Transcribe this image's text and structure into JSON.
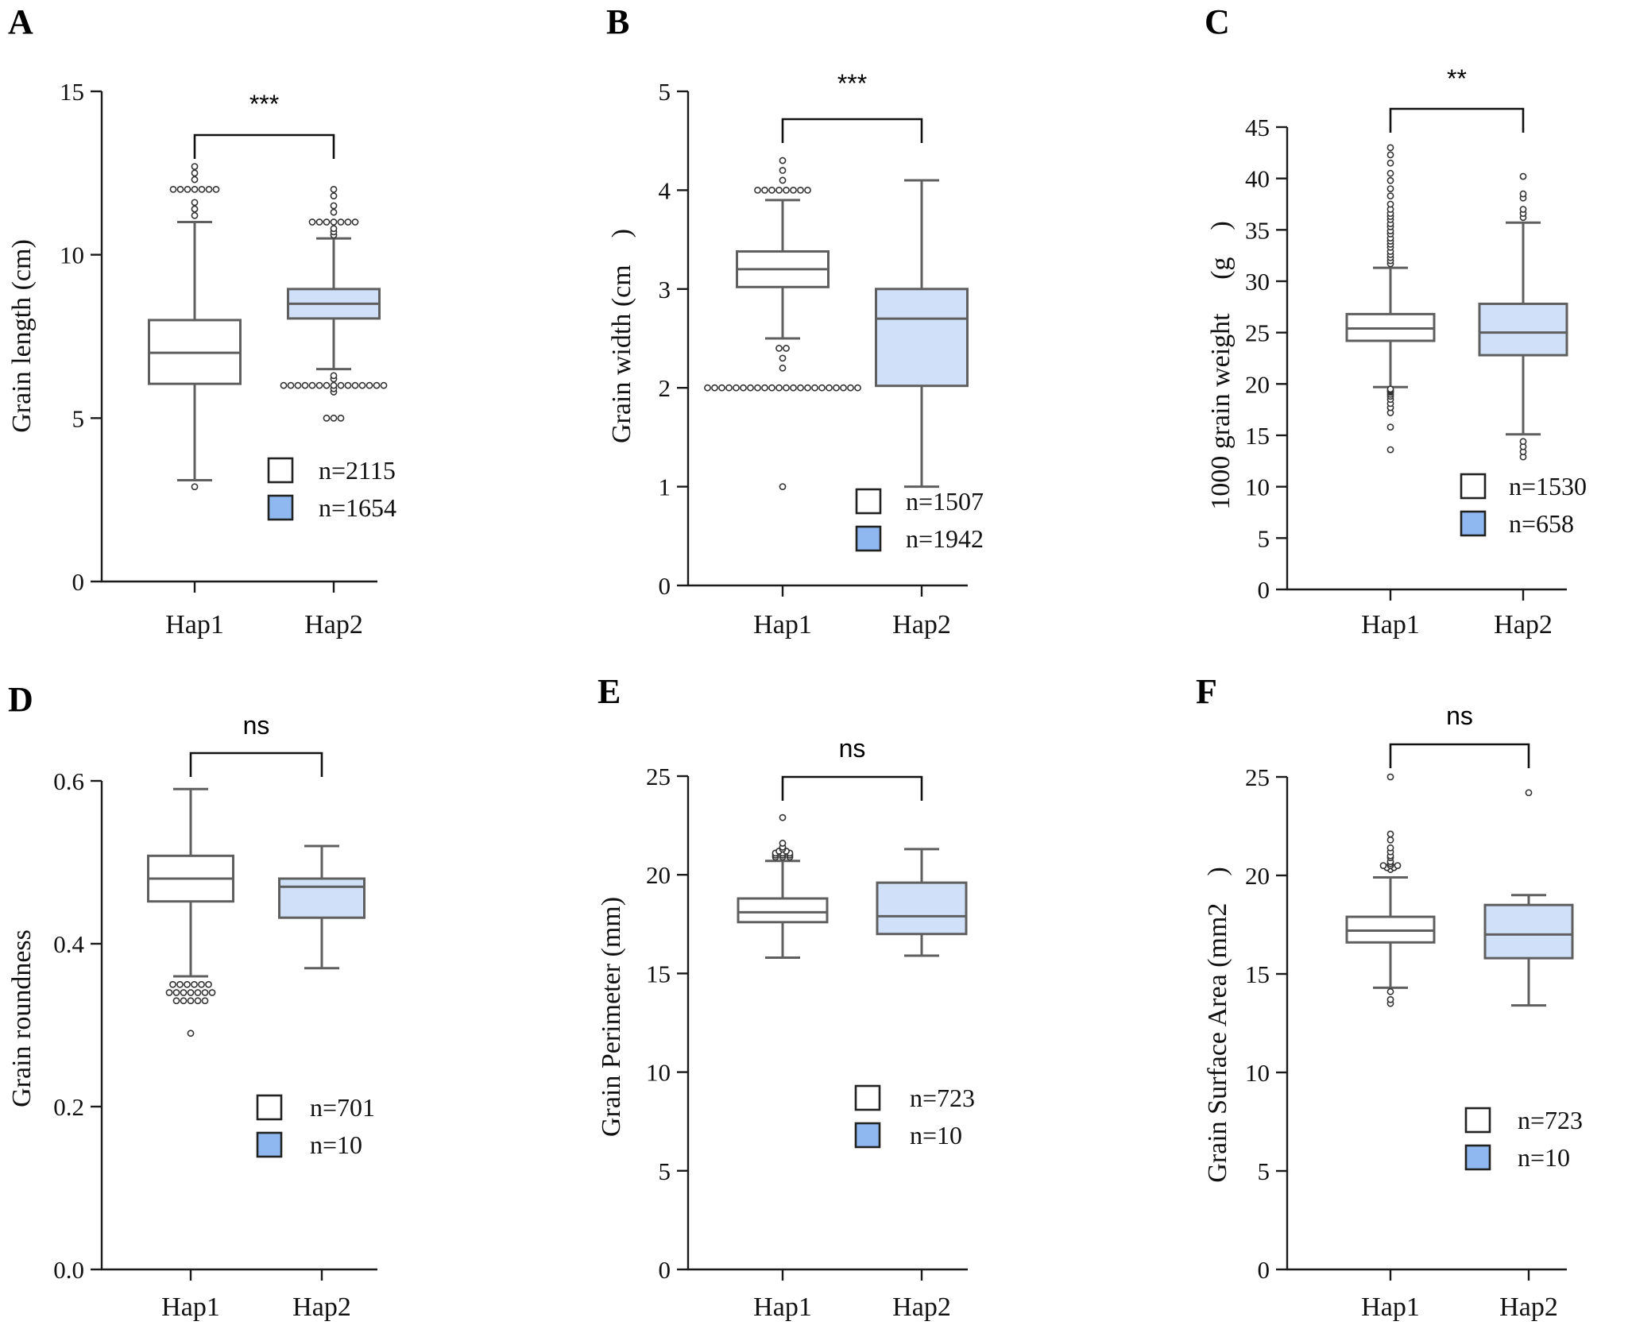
{
  "colors": {
    "hap1_fill": "#ffffff",
    "hap2_fill": "#cfe0f8",
    "legend_hap2_fill": "#8fb8f0"
  },
  "chart_data": [
    {
      "panel": "A",
      "type": "box",
      "ylabel": "Grain length (cm)",
      "ylim": [
        0,
        15
      ],
      "yticks": [
        "0",
        "5",
        "10",
        "15"
      ],
      "ytick_values": [
        0,
        5,
        10,
        15
      ],
      "categories": [
        "Hap1",
        "Hap2"
      ],
      "significance": "***",
      "legend": [
        "n=2115",
        "n=1654"
      ],
      "boxes": [
        {
          "q1": 6.05,
          "median": 7.0,
          "q3": 8.0,
          "whisker_low": 3.1,
          "whisker_high": 11.0,
          "outliers": [
            2.9,
            11.2,
            11.4,
            11.6,
            12.0,
            12.0,
            12.0,
            12.0,
            12.0,
            12.0,
            12.0,
            12.3,
            12.5,
            12.7
          ]
        },
        {
          "q1": 8.05,
          "median": 8.5,
          "q3": 8.95,
          "whisker_low": 6.5,
          "whisker_high": 10.5,
          "outliers": [
            5.0,
            5.0,
            5.0,
            5.8,
            5.9,
            6.0,
            6.0,
            6.0,
            6.0,
            6.0,
            6.0,
            6.0,
            6.0,
            6.0,
            6.0,
            6.0,
            6.0,
            6.0,
            6.0,
            6.0,
            6.2,
            6.3,
            10.6,
            10.7,
            10.8,
            11.0,
            11.0,
            11.0,
            11.0,
            11.0,
            11.0,
            11.0,
            11.3,
            11.5,
            11.8,
            12.0
          ]
        }
      ]
    },
    {
      "panel": "B",
      "type": "box",
      "ylabel": "Grain width (cm　)",
      "ylim": [
        0,
        5
      ],
      "yticks": [
        "0",
        "1",
        "2",
        "3",
        "4",
        "5"
      ],
      "ytick_values": [
        0,
        1,
        2,
        3,
        4,
        5
      ],
      "categories": [
        "Hap1",
        "Hap2"
      ],
      "significance": "***",
      "legend": [
        "n=1507",
        "n=1942"
      ],
      "boxes": [
        {
          "q1": 3.02,
          "median": 3.2,
          "q3": 3.38,
          "whisker_low": 2.5,
          "whisker_high": 3.9,
          "outliers": [
            1.0,
            2.0,
            2.0,
            2.0,
            2.0,
            2.0,
            2.0,
            2.0,
            2.0,
            2.0,
            2.0,
            2.0,
            2.0,
            2.0,
            2.0,
            2.0,
            2.0,
            2.0,
            2.0,
            2.0,
            2.0,
            2.0,
            2.0,
            2.2,
            2.3,
            2.4,
            2.4,
            4.0,
            4.0,
            4.0,
            4.0,
            4.0,
            4.0,
            4.0,
            4.0,
            4.1,
            4.2,
            4.3
          ]
        },
        {
          "q1": 2.02,
          "median": 2.7,
          "q3": 3.0,
          "whisker_low": 1.0,
          "whisker_high": 4.1,
          "outliers": []
        }
      ]
    },
    {
      "panel": "C",
      "type": "box",
      "ylabel": "1000 grain weight 　(g　)",
      "ylim": [
        0,
        45
      ],
      "yticks": [
        "0",
        "5",
        "10",
        "15",
        "20",
        "25",
        "30",
        "35",
        "40",
        "45"
      ],
      "ytick_values": [
        0,
        5,
        10,
        15,
        20,
        25,
        30,
        35,
        40,
        45
      ],
      "categories": [
        "Hap1",
        "Hap2"
      ],
      "significance": "**",
      "legend": [
        "n=1530",
        "n=658"
      ],
      "boxes": [
        {
          "q1": 24.2,
          "median": 25.4,
          "q3": 26.8,
          "whisker_low": 19.7,
          "whisker_high": 31.3,
          "outliers": [
            13.6,
            15.8,
            17.2,
            17.7,
            18.1,
            18.5,
            18.8,
            19.0,
            19.2,
            19.3,
            19.4,
            19.5,
            31.7,
            32.0,
            32.3,
            32.6,
            32.9,
            33.3,
            33.6,
            33.9,
            34.2,
            34.6,
            34.9,
            35.3,
            35.6,
            36.0,
            36.3,
            36.6,
            37.0,
            37.5,
            38.3,
            39.0,
            39.8,
            40.5,
            41.5,
            42.3,
            43.0
          ]
        },
        {
          "q1": 22.8,
          "median": 25.0,
          "q3": 27.8,
          "whisker_low": 15.1,
          "whisker_high": 35.7,
          "outliers": [
            12.9,
            13.4,
            13.9,
            14.4,
            36.2,
            36.6,
            37.0,
            38.1,
            38.5,
            40.2
          ]
        }
      ]
    },
    {
      "panel": "D",
      "type": "box",
      "ylabel": "Grain roundness",
      "ylim": [
        0,
        0.6
      ],
      "yticks": [
        "0.0",
        "0.2",
        "0.4",
        "0.6"
      ],
      "ytick_values": [
        0,
        0.2,
        0.4,
        0.6
      ],
      "categories": [
        "Hap1",
        "Hap2"
      ],
      "significance": "ns",
      "legend": [
        "n=701",
        "n=10"
      ],
      "boxes": [
        {
          "q1": 0.452,
          "median": 0.48,
          "q3": 0.508,
          "whisker_low": 0.36,
          "whisker_high": 0.59,
          "outliers": [
            0.29,
            0.33,
            0.33,
            0.33,
            0.33,
            0.33,
            0.34,
            0.34,
            0.34,
            0.34,
            0.34,
            0.34,
            0.34,
            0.35,
            0.35,
            0.35,
            0.35,
            0.35,
            0.35
          ]
        },
        {
          "q1": 0.432,
          "median": 0.47,
          "q3": 0.48,
          "whisker_low": 0.37,
          "whisker_high": 0.52,
          "outliers": []
        }
      ]
    },
    {
      "panel": "E",
      "type": "box",
      "ylabel": "Grain Perimeter (mm)",
      "ylim": [
        0,
        25
      ],
      "yticks": [
        "0",
        "5",
        "10",
        "15",
        "20",
        "25"
      ],
      "ytick_values": [
        0,
        5,
        10,
        15,
        20,
        25
      ],
      "categories": [
        "Hap1",
        "Hap2"
      ],
      "significance": "ns",
      "legend": [
        "n=723",
        "n=10"
      ],
      "boxes": [
        {
          "q1": 17.6,
          "median": 18.1,
          "q3": 18.8,
          "whisker_low": 15.8,
          "whisker_high": 20.7,
          "outliers": [
            20.9,
            20.9,
            20.9,
            21.0,
            21.0,
            21.0,
            21.1,
            21.1,
            21.1,
            21.2,
            21.2,
            21.3,
            21.4,
            21.6,
            22.9
          ]
        },
        {
          "q1": 17.0,
          "median": 17.9,
          "q3": 19.6,
          "whisker_low": 15.9,
          "whisker_high": 21.3,
          "outliers": []
        }
      ]
    },
    {
      "panel": "F",
      "type": "box",
      "ylabel": "Grain Surface Area (mm2　)",
      "ylim": [
        0,
        25
      ],
      "yticks": [
        "0",
        "5",
        "10",
        "15",
        "20",
        "25"
      ],
      "ytick_values": [
        0,
        5,
        10,
        15,
        20,
        25
      ],
      "categories": [
        "Hap1",
        "Hap2"
      ],
      "significance": "ns",
      "legend": [
        "n=723",
        "n=10"
      ],
      "boxes": [
        {
          "q1": 16.6,
          "median": 17.2,
          "q3": 17.9,
          "whisker_low": 14.3,
          "whisker_high": 19.9,
          "outliers": [
            13.5,
            13.7,
            14.1,
            20.3,
            20.4,
            20.4,
            20.5,
            20.5,
            20.5,
            20.6,
            20.7,
            20.9,
            21.0,
            21.2,
            21.4,
            21.8,
            22.1,
            25.0
          ]
        },
        {
          "q1": 15.8,
          "median": 17.0,
          "q3": 18.5,
          "whisker_low": 13.4,
          "whisker_high": 19.0,
          "outliers": [
            24.2
          ]
        }
      ]
    }
  ]
}
